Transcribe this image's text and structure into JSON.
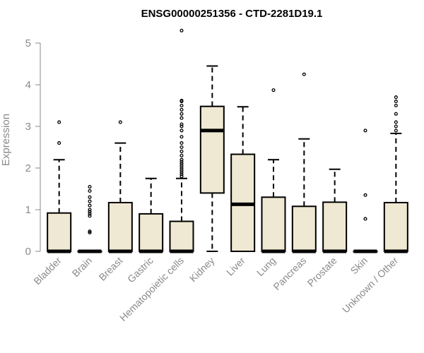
{
  "chart_data": {
    "type": "box",
    "title": "ENSG00000251356 - CTD-2281D19.1",
    "ylabel": "Expression",
    "xlabel": "",
    "ylim": [
      0,
      5.3
    ],
    "yticks": [
      0,
      1,
      2,
      3,
      4,
      5
    ],
    "grid": false,
    "legend": "none",
    "colors": {
      "box_fill": "#efe8d2",
      "stroke": "#000000",
      "axis": "#8a8a8a",
      "title": "#000000"
    },
    "categories": [
      "Bladder",
      "Brain",
      "Breast",
      "Gastric",
      "Hematopoietic cells",
      "Kidney",
      "Liver",
      "Lung",
      "Pancreas",
      "Prostate",
      "Skin",
      "Unknown / Other"
    ],
    "boxes": [
      {
        "name": "Bladder",
        "q1": 0,
        "median": 0,
        "q3": 0.92,
        "whisker_low": 0,
        "whisker_high": 2.2,
        "outliers": [
          2.6,
          3.1
        ]
      },
      {
        "name": "Brain",
        "q1": 0,
        "median": 0,
        "q3": 0,
        "whisker_low": 0,
        "whisker_high": 0,
        "outliers": [
          0.45,
          0.48,
          0.85,
          0.9,
          0.95,
          1.0,
          1.1,
          1.2,
          1.3,
          1.45,
          1.55
        ]
      },
      {
        "name": "Breast",
        "q1": 0,
        "median": 0,
        "q3": 1.17,
        "whisker_low": 0,
        "whisker_high": 2.6,
        "outliers": [
          3.1
        ]
      },
      {
        "name": "Gastric",
        "q1": 0,
        "median": 0,
        "q3": 0.9,
        "whisker_low": 0,
        "whisker_high": 1.75,
        "outliers": []
      },
      {
        "name": "Hematopoietic cells",
        "q1": 0,
        "median": 0,
        "q3": 0.72,
        "whisker_low": 0,
        "whisker_high": 1.75,
        "outliers": [
          1.8,
          1.85,
          1.9,
          1.95,
          2.0,
          2.05,
          2.1,
          2.15,
          2.2,
          2.3,
          2.4,
          2.5,
          2.6,
          2.75,
          2.9,
          3.0,
          3.05,
          3.2,
          3.3,
          3.4,
          3.5,
          3.6,
          3.62,
          5.3
        ]
      },
      {
        "name": "Kidney",
        "q1": 1.4,
        "median": 2.9,
        "q3": 3.48,
        "whisker_low": 0,
        "whisker_high": 4.45,
        "outliers": []
      },
      {
        "name": "Liver",
        "q1": 0,
        "median": 1.13,
        "q3": 2.33,
        "whisker_low": 0,
        "whisker_high": 3.47,
        "outliers": []
      },
      {
        "name": "Lung",
        "q1": 0,
        "median": 0,
        "q3": 1.3,
        "whisker_low": 0,
        "whisker_high": 2.2,
        "outliers": [
          3.87
        ]
      },
      {
        "name": "Pancreas",
        "q1": 0,
        "median": 0,
        "q3": 1.08,
        "whisker_low": 0,
        "whisker_high": 2.7,
        "outliers": [
          4.25
        ]
      },
      {
        "name": "Prostate",
        "q1": 0,
        "median": 0,
        "q3": 1.18,
        "whisker_low": 0,
        "whisker_high": 1.97,
        "outliers": []
      },
      {
        "name": "Skin",
        "q1": 0,
        "median": 0,
        "q3": 0,
        "whisker_low": 0,
        "whisker_high": 0,
        "outliers": [
          0.78,
          1.35,
          2.9
        ]
      },
      {
        "name": "Unknown / Other",
        "q1": 0,
        "median": 0,
        "q3": 1.17,
        "whisker_low": 0,
        "whisker_high": 2.83,
        "outliers": [
          2.9,
          3.0,
          3.1,
          3.3,
          3.5,
          3.6,
          3.7
        ]
      }
    ]
  }
}
